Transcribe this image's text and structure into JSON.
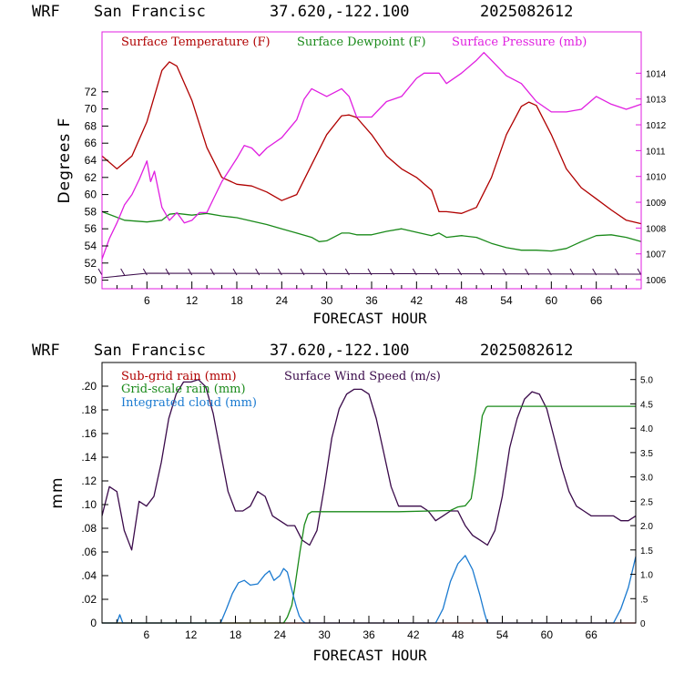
{
  "chart_data": [
    {
      "type": "line",
      "header": [
        "WRF",
        "San Francisc",
        "37.620,-122.100",
        "2025082612"
      ],
      "xlabel": "FORECAST HOUR",
      "ylabel": "Degrees F",
      "xlim": [
        0,
        72
      ],
      "ylim": [
        49,
        79
      ],
      "y2lim": [
        1005.65,
        1015.6
      ],
      "x_ticks": [
        "6",
        "12",
        "18",
        "24",
        "30",
        "36",
        "42",
        "48",
        "54",
        "60",
        "66"
      ],
      "y_ticks": [
        "50",
        "52",
        "54",
        "56",
        "58",
        "60",
        "62",
        "64",
        "66",
        "68",
        "70",
        "72"
      ],
      "y2_ticks": [
        "1006",
        "1007",
        "1008",
        "1009",
        "1010",
        "1011",
        "1012",
        "1013",
        "1014"
      ],
      "legend": [
        "Surface Temperature (F)",
        "Surface Dewpoint (F)",
        "Surface Pressure (mb)"
      ],
      "colors": {
        "temperature": "#b00000",
        "dewpoint": "#1a8a1a",
        "pressure": "#e01ee0",
        "barbs": "#3a0a4a",
        "frame": "#e01ee0"
      },
      "series": [
        {
          "name": "Surface Temperature (F)",
          "axis": "left",
          "x": [
            0,
            2,
            4,
            6,
            8,
            9,
            10,
            12,
            14,
            16,
            18,
            20,
            22,
            24,
            26,
            28,
            30,
            32,
            33,
            34,
            36,
            38,
            40,
            42,
            44,
            45,
            46,
            48,
            50,
            52,
            54,
            56,
            57,
            58,
            60,
            62,
            64,
            66,
            68,
            70,
            72
          ],
          "y": [
            64.5,
            63,
            64.5,
            68.5,
            74.5,
            75.5,
            75,
            71,
            65.5,
            62,
            61.2,
            61,
            60.3,
            59.3,
            60,
            63.5,
            67,
            69.2,
            69.3,
            69,
            67,
            64.5,
            63,
            62,
            60.5,
            58,
            58,
            57.8,
            58.5,
            62,
            67,
            70.3,
            70.8,
            70.4,
            67,
            63,
            60.8,
            59.5,
            58.2,
            57,
            56.6
          ]
        },
        {
          "name": "Surface Dewpoint (F)",
          "axis": "left",
          "x": [
            0,
            3,
            6,
            8,
            9,
            10,
            12,
            14,
            16,
            18,
            20,
            22,
            24,
            26,
            28,
            29,
            30,
            32,
            33,
            34,
            36,
            38,
            40,
            42,
            44,
            45,
            46,
            48,
            50,
            52,
            54,
            56,
            58,
            60,
            62,
            64,
            66,
            68,
            70,
            72
          ],
          "y": [
            58,
            57,
            56.8,
            57,
            57.7,
            57.8,
            57.6,
            57.8,
            57.5,
            57.3,
            56.9,
            56.5,
            56,
            55.5,
            55,
            54.5,
            54.6,
            55.5,
            55.5,
            55.3,
            55.3,
            55.7,
            56,
            55.6,
            55.2,
            55.5,
            55,
            55.2,
            55,
            54.3,
            53.8,
            53.5,
            53.5,
            53.4,
            53.7,
            54.5,
            55.2,
            55.3,
            55,
            54.5
          ]
        },
        {
          "name": "Surface Pressure (mb)",
          "axis": "right",
          "x": [
            0,
            1,
            2,
            3,
            4,
            5,
            6,
            6.5,
            7,
            8,
            9,
            10,
            11,
            12,
            13,
            14,
            15,
            16,
            18,
            19,
            20,
            21,
            22,
            24,
            26,
            27,
            28,
            30,
            32,
            33,
            34,
            36,
            38,
            40,
            42,
            43,
            44,
            45,
            46,
            48,
            50,
            51,
            52,
            54,
            56,
            58,
            60,
            62,
            64,
            66,
            68,
            70,
            72
          ],
          "y": [
            1006.8,
            1007.6,
            1008.2,
            1008.9,
            1009.3,
            1009.9,
            1010.6,
            1009.8,
            1010.2,
            1008.8,
            1008.3,
            1008.6,
            1008.2,
            1008.3,
            1008.6,
            1008.6,
            1009.2,
            1009.8,
            1010.7,
            1011.2,
            1011.1,
            1010.8,
            1011.1,
            1011.5,
            1012.2,
            1013.0,
            1013.4,
            1013.1,
            1013.4,
            1013.1,
            1012.3,
            1012.3,
            1012.9,
            1013.1,
            1013.8,
            1014.0,
            1014.0,
            1014.0,
            1013.6,
            1014.0,
            1014.5,
            1014.8,
            1014.5,
            1013.9,
            1013.6,
            1012.9,
            1012.5,
            1012.5,
            1012.6,
            1013.1,
            1012.8,
            1012.6,
            1012.8
          ]
        }
      ],
      "wind_barbs": {
        "x": [
          0,
          3,
          6,
          9,
          12,
          15,
          18,
          21,
          24,
          27,
          30,
          33,
          36,
          39,
          42,
          45,
          48,
          51,
          54,
          57,
          60,
          63,
          66,
          69,
          72
        ]
      }
    },
    {
      "type": "line",
      "header": [
        "WRF",
        "San Francisc",
        "37.620,-122.100",
        "2025082612"
      ],
      "xlabel": "FORECAST HOUR",
      "ylabel": "mm",
      "xlim": [
        0,
        72
      ],
      "ylim": [
        0,
        0.22
      ],
      "y2lim": [
        0,
        5.35
      ],
      "x_ticks": [
        "6",
        "12",
        "18",
        "24",
        "30",
        "36",
        "42",
        "48",
        "54",
        "60",
        "66"
      ],
      "y_ticks": [
        "0",
        ".02",
        ".04",
        ".06",
        ".08",
        ".10",
        ".12",
        ".14",
        ".16",
        ".18",
        ".20"
      ],
      "y2_ticks": [
        "0",
        ".5",
        "1.0",
        "1.5",
        "2.0",
        "2.5",
        "3.0",
        "3.5",
        "4.0",
        "4.5",
        "5.0"
      ],
      "legend": [
        "Sub-grid rain (mm)",
        "Surface Wind Speed (m/s)",
        "Grid-scale rain (mm)",
        "Integrated cloud (mm)"
      ],
      "colors": {
        "subgrid": "#b00000",
        "wind": "#3a0a4a",
        "gridscale": "#1a8a1a",
        "cloud": "#1a7ad0"
      },
      "series": [
        {
          "name": "Sub-grid rain (mm)",
          "axis": "left",
          "x": [
            0,
            72
          ],
          "y": [
            0,
            0
          ]
        },
        {
          "name": "Surface Wind Speed (m/s)",
          "axis": "right",
          "x": [
            0,
            1,
            2,
            3,
            4,
            5,
            6,
            7,
            8,
            9,
            10,
            11,
            12,
            13,
            14,
            15,
            16,
            17,
            18,
            19,
            20,
            21,
            22,
            23,
            24,
            25,
            26,
            27,
            28,
            29,
            30,
            31,
            32,
            33,
            34,
            35,
            36,
            37,
            38,
            39,
            40,
            41,
            42,
            43,
            44,
            45,
            46,
            47,
            48,
            49,
            50,
            51,
            52,
            53,
            54,
            55,
            56,
            57,
            58,
            59,
            60,
            61,
            62,
            63,
            64,
            65,
            66,
            67,
            68,
            69,
            70,
            71,
            72
          ],
          "y": [
            2.2,
            2.8,
            2.7,
            1.9,
            1.5,
            2.5,
            2.4,
            2.6,
            3.3,
            4.2,
            4.7,
            4.95,
            4.95,
            5.0,
            4.85,
            4.3,
            3.5,
            2.7,
            2.3,
            2.3,
            2.4,
            2.7,
            2.6,
            2.2,
            2.1,
            2.0,
            2.0,
            1.7,
            1.6,
            1.9,
            2.8,
            3.8,
            4.4,
            4.7,
            4.8,
            4.8,
            4.7,
            4.2,
            3.5,
            2.8,
            2.4,
            2.4,
            2.4,
            2.4,
            2.3,
            2.1,
            2.2,
            2.3,
            2.3,
            2.0,
            1.8,
            1.7,
            1.6,
            1.9,
            2.6,
            3.6,
            4.2,
            4.6,
            4.75,
            4.7,
            4.4,
            3.8,
            3.2,
            2.7,
            2.4,
            2.3,
            2.2,
            2.2,
            2.2,
            2.2,
            2.1,
            2.1,
            2.2
          ]
        },
        {
          "name": "Grid-scale rain (mm)",
          "axis": "left",
          "x": [
            0,
            24.5,
            25,
            25.6,
            26,
            26.7,
            27.3,
            27.8,
            28.3,
            30,
            40,
            47,
            48,
            49,
            49.8,
            50.3,
            50.8,
            51.3,
            51.8,
            52,
            60,
            72
          ],
          "y": [
            0,
            0,
            0.005,
            0.015,
            0.03,
            0.06,
            0.083,
            0.092,
            0.094,
            0.094,
            0.094,
            0.095,
            0.098,
            0.099,
            0.105,
            0.125,
            0.15,
            0.175,
            0.182,
            0.183,
            0.183,
            0.183
          ]
        },
        {
          "name": "Integrated cloud (mm)",
          "axis": "left",
          "x": [
            0,
            2,
            2.4,
            2.8,
            16,
            16.8,
            17.6,
            18.4,
            19.2,
            20,
            21,
            22,
            22.6,
            23.2,
            24,
            24.5,
            25,
            25.6,
            26.2,
            26.6,
            27,
            27.4,
            28,
            45,
            46,
            47,
            48,
            49,
            50,
            51,
            51.6,
            52,
            69,
            70,
            71,
            72
          ],
          "y": [
            0,
            0,
            0.007,
            0,
            0,
            0.012,
            0.025,
            0.034,
            0.036,
            0.032,
            0.033,
            0.041,
            0.044,
            0.036,
            0.04,
            0.046,
            0.043,
            0.028,
            0.014,
            0.006,
            0.002,
            0,
            0,
            0,
            0.012,
            0.035,
            0.05,
            0.057,
            0.045,
            0.023,
            0.008,
            0,
            0,
            0.012,
            0.03,
            0.056
          ]
        }
      ]
    }
  ]
}
